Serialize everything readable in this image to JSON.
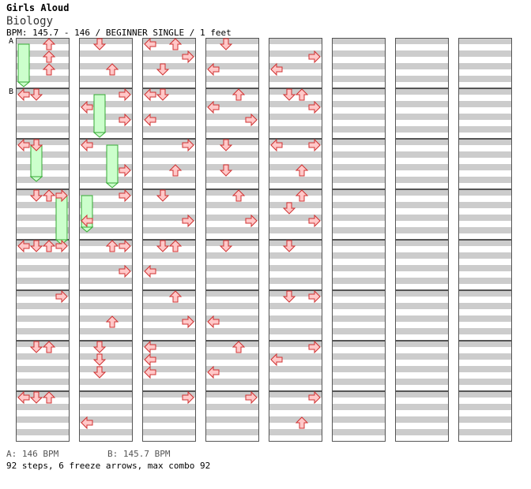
{
  "header": {
    "artist": "Girls Aloud",
    "title": "Biology",
    "bpm_line": "BPM: 145.7 - 146 / BEGINNER SINGLE / 1 feet"
  },
  "markers": [
    "A",
    "B"
  ],
  "footer": {
    "bpm_a": "A: 146 BPM",
    "bpm_b": "B: 145.7 BPM",
    "stats": "92 steps, 6 freeze arrows, max combo 92"
  },
  "chart": {
    "columns": 8,
    "measures_per_column": 8,
    "lanes": [
      "left",
      "down",
      "up",
      "right"
    ],
    "arrows": [
      [
        0,
        0,
        2,
        0.125
      ],
      [
        0,
        0,
        2,
        0.375
      ],
      [
        0,
        0,
        2,
        0.625
      ],
      [
        0,
        1,
        0,
        0.125
      ],
      [
        0,
        1,
        1,
        0.125
      ],
      [
        0,
        2,
        0,
        0.125
      ],
      [
        0,
        2,
        1,
        0.125
      ],
      [
        0,
        3,
        1,
        0.125
      ],
      [
        0,
        3,
        2,
        0.125
      ],
      [
        0,
        3,
        3,
        0.125
      ],
      [
        0,
        4,
        0,
        0.125
      ],
      [
        0,
        4,
        1,
        0.125
      ],
      [
        0,
        4,
        2,
        0.125
      ],
      [
        0,
        4,
        3,
        0.125
      ],
      [
        0,
        5,
        3,
        0.125
      ],
      [
        0,
        6,
        1,
        0.125
      ],
      [
        0,
        6,
        2,
        0.125
      ],
      [
        0,
        7,
        0,
        0.125
      ],
      [
        0,
        7,
        1,
        0.125
      ],
      [
        0,
        7,
        2,
        0.125
      ],
      [
        1,
        0,
        1,
        0.125
      ],
      [
        1,
        0,
        2,
        0.625
      ],
      [
        1,
        1,
        3,
        0.125
      ],
      [
        1,
        1,
        0,
        0.375
      ],
      [
        1,
        1,
        3,
        0.625
      ],
      [
        1,
        2,
        0,
        0.125
      ],
      [
        1,
        2,
        3,
        0.625
      ],
      [
        1,
        3,
        3,
        0.125
      ],
      [
        1,
        3,
        0,
        0.625
      ],
      [
        1,
        4,
        2,
        0.125
      ],
      [
        1,
        4,
        3,
        0.125
      ],
      [
        1,
        4,
        3,
        0.625
      ],
      [
        1,
        5,
        2,
        0.625
      ],
      [
        1,
        6,
        1,
        0.125
      ],
      [
        1,
        6,
        1,
        0.375
      ],
      [
        1,
        6,
        1,
        0.625
      ],
      [
        1,
        7,
        0,
        0.625
      ],
      [
        2,
        0,
        0,
        0.125
      ],
      [
        2,
        0,
        2,
        0.125
      ],
      [
        2,
        0,
        3,
        0.375
      ],
      [
        2,
        0,
        1,
        0.625
      ],
      [
        2,
        1,
        0,
        0.125
      ],
      [
        2,
        1,
        0,
        0.625
      ],
      [
        2,
        1,
        1,
        0.125
      ],
      [
        2,
        2,
        3,
        0.125
      ],
      [
        2,
        2,
        2,
        0.625
      ],
      [
        2,
        3,
        1,
        0.125
      ],
      [
        2,
        3,
        3,
        0.625
      ],
      [
        2,
        4,
        1,
        0.125
      ],
      [
        2,
        4,
        2,
        0.125
      ],
      [
        2,
        4,
        0,
        0.625
      ],
      [
        2,
        5,
        2,
        0.125
      ],
      [
        2,
        5,
        3,
        0.625
      ],
      [
        2,
        6,
        0,
        0.125
      ],
      [
        2,
        6,
        0,
        0.375
      ],
      [
        2,
        6,
        0,
        0.625
      ],
      [
        2,
        7,
        3,
        0.125
      ],
      [
        3,
        0,
        1,
        0.125
      ],
      [
        3,
        0,
        0,
        0.625
      ],
      [
        3,
        1,
        2,
        0.125
      ],
      [
        3,
        1,
        0,
        0.375
      ],
      [
        3,
        1,
        3,
        0.625
      ],
      [
        3,
        2,
        1,
        0.125
      ],
      [
        3,
        2,
        1,
        0.625
      ],
      [
        3,
        3,
        2,
        0.125
      ],
      [
        3,
        3,
        3,
        0.625
      ],
      [
        3,
        4,
        1,
        0.125
      ],
      [
        3,
        5,
        0,
        0.625
      ],
      [
        3,
        6,
        2,
        0.125
      ],
      [
        3,
        6,
        0,
        0.625
      ],
      [
        3,
        7,
        3,
        0.125
      ],
      [
        4,
        1,
        1,
        0.125
      ],
      [
        4,
        1,
        2,
        0.125
      ],
      [
        4,
        2,
        0,
        0.125
      ],
      [
        4,
        2,
        2,
        0.625
      ],
      [
        4,
        3,
        2,
        0.125
      ],
      [
        4,
        3,
        1,
        0.375
      ],
      [
        4,
        4,
        1,
        0.125
      ],
      [
        4,
        5,
        3,
        0.125
      ],
      [
        4,
        6,
        3,
        0.125
      ],
      [
        4,
        6,
        0,
        0.375
      ],
      [
        4,
        7,
        3,
        0.125
      ],
      [
        4,
        7,
        2,
        0.625
      ],
      [
        4,
        1,
        3,
        0.375
      ],
      [
        4,
        0,
        0,
        0.625
      ],
      [
        4,
        2,
        3,
        0.125
      ],
      [
        4,
        0,
        3,
        0.375
      ],
      [
        4,
        5,
        1,
        0.125
      ],
      [
        4,
        3,
        3,
        0.625
      ]
    ],
    "freezes": [
      [
        0,
        3,
        3,
        1.0
      ],
      [
        1,
        2,
        2,
        0.875
      ],
      [
        1,
        1,
        1,
        0.875
      ],
      [
        0,
        2,
        1,
        0.75
      ],
      [
        1,
        3,
        0,
        0.75
      ],
      [
        0,
        0,
        0,
        0.875
      ]
    ]
  }
}
